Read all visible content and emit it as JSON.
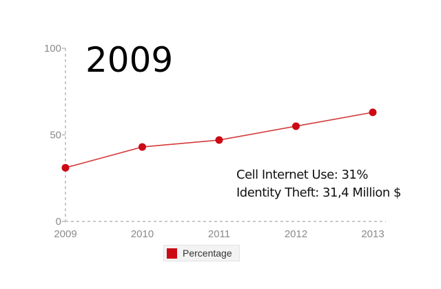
{
  "overlay": {
    "year": "2009",
    "line1": "Cell Internet Use: 31%",
    "line2": "Identity Theft: 31,4 Million $"
  },
  "colors": {
    "series": "#cc0a14",
    "line": "#d43a3a",
    "grid": "#b5b5b5",
    "tick_text": "#8a8a8a"
  },
  "chart_data": {
    "type": "line",
    "x": [
      "2009",
      "2010",
      "2011",
      "2012",
      "2013"
    ],
    "series": [
      {
        "name": "Percentage",
        "values": [
          31,
          43,
          47,
          55,
          63
        ]
      }
    ],
    "yticks": [
      "0",
      "50",
      "100"
    ],
    "ylim": [
      0,
      100
    ],
    "grid": false,
    "legend": "bottom"
  }
}
